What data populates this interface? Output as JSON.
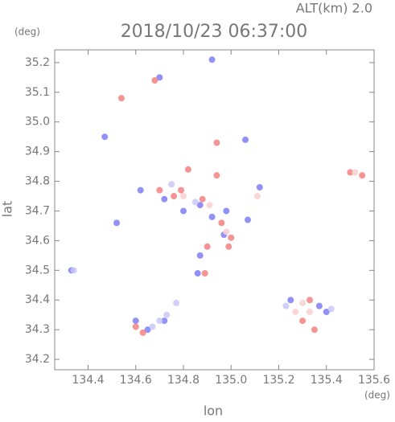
{
  "chart_data": {
    "type": "scatter",
    "title": "2018/10/23 06:37:00",
    "subtitle": "ALT(km) 2.0",
    "x_label": "lon",
    "y_label": "lat",
    "x_unit": "(deg)",
    "y_unit": "(deg)",
    "xlim": [
      134.26,
      135.6
    ],
    "ylim": [
      34.165,
      35.243
    ],
    "xticks": [
      134.4,
      134.6,
      134.8,
      {
        "value": 135,
        "label": "135.0"
      },
      135.2,
      135.4,
      135.6
    ],
    "yticks": [
      34.2,
      34.3,
      34.4,
      34.5,
      34.6,
      34.7,
      34.8,
      34.9,
      {
        "value": 35,
        "label": "35.0"
      },
      35.1,
      35.2
    ],
    "series": [
      {
        "color": "#7f7ff5",
        "x": [
          134.33,
          134.92,
          134.7,
          134.62,
          134.72,
          134.8,
          134.87,
          134.92,
          134.97,
          134.98,
          135.06,
          135.07,
          134.87,
          134.86,
          134.65,
          134.6,
          134.72,
          135.37,
          135.4,
          135.25,
          134.47,
          135.12,
          134.52
        ],
        "y": [
          34.5,
          35.21,
          35.15,
          34.77,
          34.74,
          34.7,
          34.72,
          34.68,
          34.62,
          34.7,
          34.94,
          34.67,
          34.55,
          34.49,
          34.3,
          34.33,
          34.33,
          34.38,
          34.36,
          34.4,
          34.95,
          34.78,
          34.66
        ]
      },
      {
        "color": "#f58080",
        "x": [
          134.54,
          134.68,
          134.94,
          134.94,
          134.82,
          134.79,
          134.76,
          134.7,
          134.88,
          134.96,
          135.0,
          134.99,
          134.89,
          134.6,
          134.63,
          135.3,
          135.35,
          135.33,
          135.5,
          135.55,
          134.9
        ],
        "y": [
          35.08,
          35.14,
          34.93,
          34.82,
          34.84,
          34.77,
          34.75,
          34.77,
          34.74,
          34.66,
          34.61,
          34.58,
          34.49,
          34.31,
          34.29,
          34.33,
          34.3,
          34.4,
          34.83,
          34.82,
          34.58
        ]
      },
      {
        "color": "#c8c8f8",
        "x": [
          134.34,
          134.7,
          134.73,
          134.67,
          134.77,
          135.42,
          135.23,
          134.85,
          134.75
        ],
        "y": [
          34.5,
          34.33,
          34.35,
          34.31,
          34.39,
          34.37,
          34.38,
          34.73,
          34.79
        ]
      },
      {
        "color": "#f8d0d0",
        "x": [
          135.3,
          135.33,
          135.27,
          134.8,
          134.91,
          134.98,
          135.11,
          135.52
        ],
        "y": [
          34.39,
          34.36,
          34.36,
          34.75,
          34.72,
          34.63,
          34.75,
          34.83
        ]
      }
    ]
  }
}
